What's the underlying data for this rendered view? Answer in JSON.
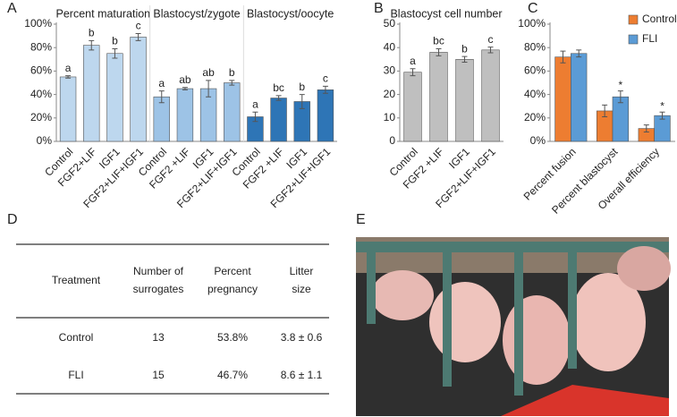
{
  "panel_labels": [
    "A",
    "B",
    "C",
    "D",
    "E"
  ],
  "chart_data": [
    {
      "type": "bar-panels",
      "ylim": [
        0,
        100
      ],
      "yticks": [
        {
          "value": 0,
          "label": "0%"
        },
        {
          "value": 20,
          "label": "20%"
        },
        {
          "value": 40,
          "label": "40%"
        },
        {
          "value": 60,
          "label": "60%"
        },
        {
          "value": 80,
          "label": "80%"
        },
        {
          "value": 100,
          "label": "100%"
        }
      ],
      "groups": [
        {
          "title": "Percent maturation",
          "color": "#bdd7ee",
          "categories": [
            "Control",
            "FGF2+LIF",
            "IGF1",
            "FGF2+LIF+IGF1"
          ],
          "values": [
            55,
            82,
            75,
            89
          ],
          "errors": [
            1,
            4,
            4,
            3
          ],
          "letters": [
            "a",
            "b",
            "b",
            "c"
          ]
        },
        {
          "title": "Blastocyst/zygote",
          "color": "#9dc3e6",
          "categories": [
            "Control",
            "FGF2 +LIF",
            "IGF1",
            "FGF2+LIF+IGF1"
          ],
          "values": [
            38,
            45,
            45,
            50
          ],
          "errors": [
            5,
            1,
            7,
            2
          ],
          "letters": [
            "a",
            "ab",
            "ab",
            "b"
          ]
        },
        {
          "title": "Blastocyst/oocyte",
          "color": "#2e75b6",
          "categories": [
            "Control",
            "FGF2 +LIF",
            "IGF1",
            "FGF2+LIF+IGF1"
          ],
          "values": [
            21,
            37,
            34,
            44
          ],
          "errors": [
            4,
            2,
            6,
            3
          ],
          "letters": [
            "a",
            "bc",
            "b",
            "c"
          ]
        }
      ]
    },
    {
      "type": "bar",
      "title": "Blastocyst cell number",
      "color": "#bfbfbf",
      "categories": [
        "Control",
        "FGF2 +LIF",
        "IGF1",
        "FGF2+LIF+IGF1"
      ],
      "values": [
        29.5,
        38,
        35,
        39
      ],
      "errors": [
        1.5,
        1.5,
        1.2,
        1.2
      ],
      "letters": [
        "a",
        "bc",
        "b",
        "c"
      ],
      "ylim": [
        0,
        50
      ],
      "yticks": [
        0,
        10,
        20,
        30,
        40,
        50
      ]
    },
    {
      "type": "grouped-bar",
      "legend": "top-right",
      "categories": [
        "Percent fusion",
        "Percent blastocyst",
        "Overall efficiency"
      ],
      "series": [
        {
          "name": "Control",
          "color": "#ed7d31",
          "values": [
            72,
            26,
            11
          ],
          "errors": [
            5,
            5,
            3
          ],
          "markers": [
            null,
            null,
            null
          ]
        },
        {
          "name": "FLI",
          "color": "#5b9bd5",
          "values": [
            75,
            38,
            22
          ],
          "errors": [
            3,
            5,
            3
          ],
          "markers": [
            null,
            "*",
            "*"
          ]
        }
      ],
      "ylim": [
        0,
        100
      ],
      "yticks": [
        {
          "value": 0,
          "label": "0%"
        },
        {
          "value": 20,
          "label": "20%"
        },
        {
          "value": 40,
          "label": "40%"
        },
        {
          "value": 60,
          "label": "60%"
        },
        {
          "value": 80,
          "label": "80%"
        },
        {
          "value": 100,
          "label": "100%"
        }
      ]
    }
  ],
  "table": {
    "header": [
      [
        "Treatment"
      ],
      [
        "Number of",
        "surrogates"
      ],
      [
        "Percent",
        "pregnancy"
      ],
      [
        "Litter",
        "size"
      ]
    ],
    "rows": [
      [
        "Control",
        "13",
        "53.8%",
        "3.8 ± 0.6"
      ],
      [
        "FLI",
        "15",
        "46.7%",
        "8.6 ± 1.1"
      ]
    ]
  }
}
